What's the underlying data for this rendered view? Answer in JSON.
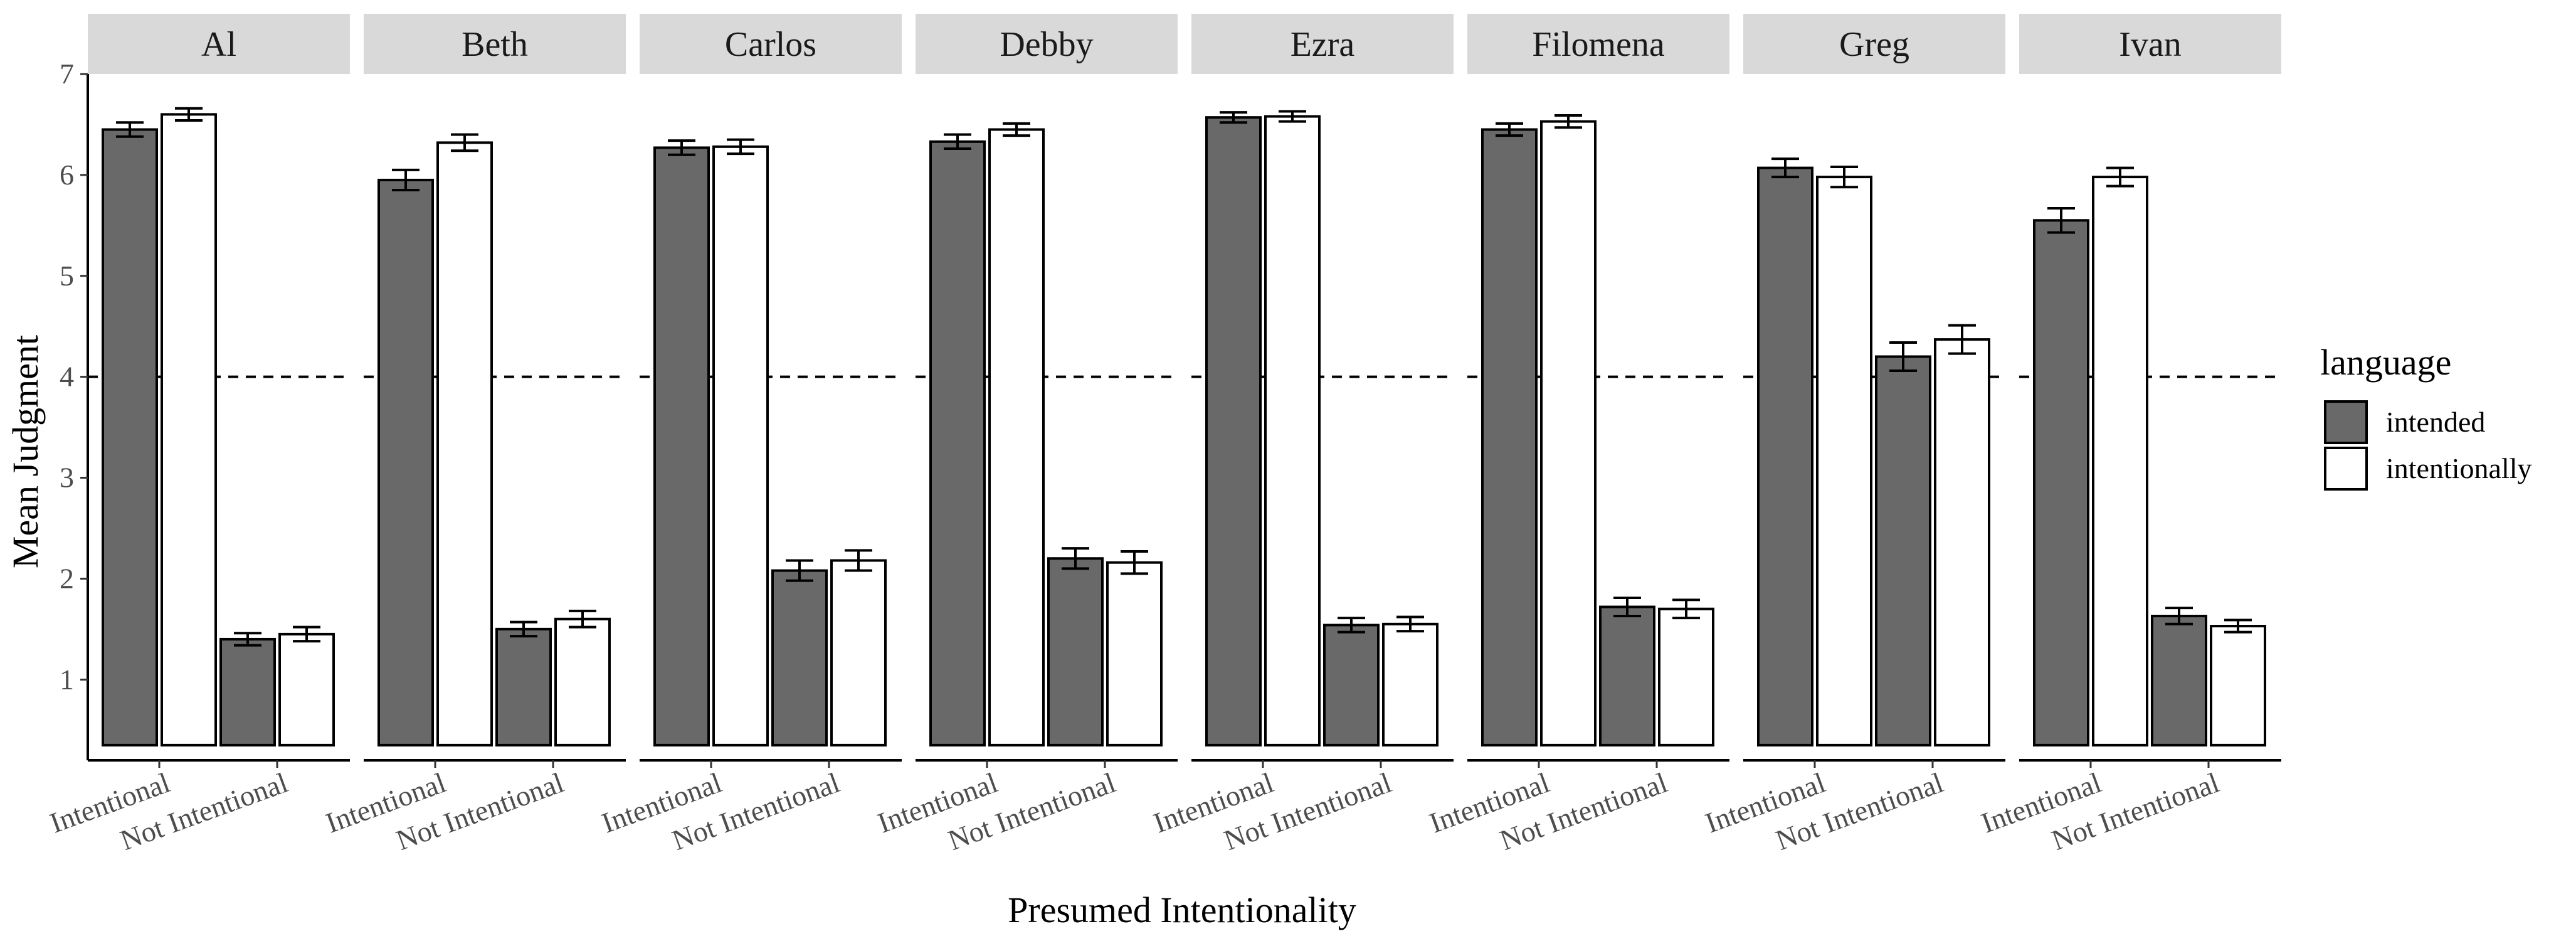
{
  "chart_data": {
    "type": "bar",
    "facets": [
      "Al",
      "Beth",
      "Carlos",
      "Debby",
      "Ezra",
      "Filomena",
      "Greg",
      "Ivan"
    ],
    "categories": [
      "Intentional",
      "Not Intentional"
    ],
    "series_order": [
      "intended",
      "intentionally"
    ],
    "colors": {
      "intended": "#696969",
      "intentionally": "#ffffff",
      "strip": "#d9d9d9",
      "stroke": "#000000"
    },
    "values": {
      "Al": {
        "intended": [
          6.45,
          1.4
        ],
        "intentionally": [
          6.6,
          1.45
        ]
      },
      "Beth": {
        "intended": [
          5.95,
          1.5
        ],
        "intentionally": [
          6.32,
          1.6
        ]
      },
      "Carlos": {
        "intended": [
          6.27,
          2.08
        ],
        "intentionally": [
          6.28,
          2.18
        ]
      },
      "Debby": {
        "intended": [
          6.33,
          2.2
        ],
        "intentionally": [
          6.45,
          2.16
        ]
      },
      "Ezra": {
        "intended": [
          6.57,
          1.54
        ],
        "intentionally": [
          6.58,
          1.55
        ]
      },
      "Filomena": {
        "intended": [
          6.45,
          1.72
        ],
        "intentionally": [
          6.53,
          1.7
        ]
      },
      "Greg": {
        "intended": [
          6.07,
          4.2
        ],
        "intentionally": [
          5.98,
          4.37
        ]
      },
      "Ivan": {
        "intended": [
          5.55,
          1.63
        ],
        "intentionally": [
          5.98,
          1.53
        ]
      }
    },
    "errors": {
      "Al": {
        "intended": [
          0.07,
          0.06
        ],
        "intentionally": [
          0.06,
          0.07
        ]
      },
      "Beth": {
        "intended": [
          0.1,
          0.07
        ],
        "intentionally": [
          0.08,
          0.08
        ]
      },
      "Carlos": {
        "intended": [
          0.07,
          0.1
        ],
        "intentionally": [
          0.07,
          0.1
        ]
      },
      "Debby": {
        "intended": [
          0.07,
          0.1
        ],
        "intentionally": [
          0.06,
          0.11
        ]
      },
      "Ezra": {
        "intended": [
          0.05,
          0.07
        ],
        "intentionally": [
          0.05,
          0.07
        ]
      },
      "Filomena": {
        "intended": [
          0.06,
          0.09
        ],
        "intentionally": [
          0.06,
          0.09
        ]
      },
      "Greg": {
        "intended": [
          0.09,
          0.14
        ],
        "intentionally": [
          0.1,
          0.14
        ]
      },
      "Ivan": {
        "intended": [
          0.12,
          0.08
        ],
        "intentionally": [
          0.09,
          0.06
        ]
      }
    },
    "reference_line": 4,
    "ylim": [
      0.2,
      7
    ],
    "yticks": [
      1,
      2,
      3,
      4,
      5,
      6,
      7
    ],
    "xlabel": "Presumed Intentionality",
    "ylabel": "Mean Judgment",
    "legend": {
      "title": "language",
      "entries": [
        "intended",
        "intentionally"
      ],
      "placement": "right"
    },
    "grid": false
  }
}
